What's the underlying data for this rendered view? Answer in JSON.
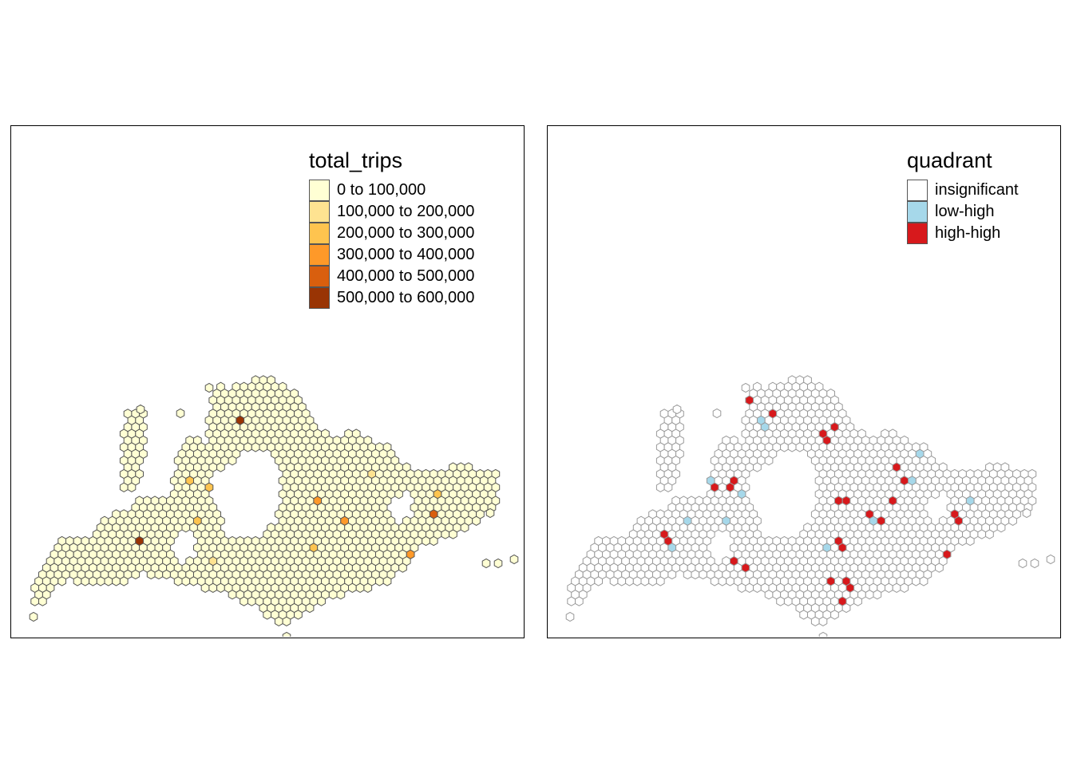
{
  "maps": [
    {
      "id": "left",
      "legend": {
        "title": "total_trips",
        "items": [
          {
            "label": "0 to 100,000",
            "color": "#ffffd4"
          },
          {
            "label": "100,000 to 200,000",
            "color": "#fee391"
          },
          {
            "label": "200,000 to 300,000",
            "color": "#fec44f"
          },
          {
            "label": "300,000 to 400,000",
            "color": "#fe9929"
          },
          {
            "label": "400,000 to 500,000",
            "color": "#d95f0e"
          },
          {
            "label": "500,000 to 600,000",
            "color": "#993404"
          }
        ]
      },
      "hex_border_color": "#555555",
      "base_color": "#ffffd4"
    },
    {
      "id": "right",
      "legend": {
        "title": "quadrant",
        "items": [
          {
            "label": "insignificant",
            "color": "#ffffff"
          },
          {
            "label": "low-high",
            "color": "#a6d8ea"
          },
          {
            "label": "high-high",
            "color": "#d7191c"
          }
        ]
      },
      "hex_border_color": "#999999",
      "base_color": "#ffffff"
    }
  ]
}
